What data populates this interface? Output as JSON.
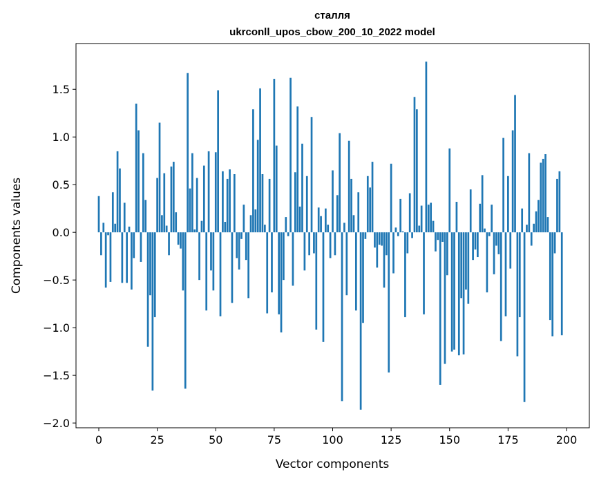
{
  "chart_data": {
    "type": "bar",
    "title": "сталля",
    "subtitle": "ukrconll_upos_cbow_200_10_2022 model",
    "xlabel": "Vector components",
    "ylabel": "Components values",
    "xlim": [
      -9.75,
      209.75
    ],
    "ylim": [
      -2.05,
      1.98
    ],
    "xticks": [
      0,
      25,
      50,
      75,
      100,
      125,
      150,
      175,
      200
    ],
    "xtick_labels": [
      "0",
      "25",
      "50",
      "75",
      "100",
      "125",
      "150",
      "175",
      "200"
    ],
    "yticks": [
      -2.0,
      -1.5,
      -1.0,
      -0.5,
      0.0,
      0.5,
      1.0,
      1.5
    ],
    "ytick_labels": [
      "−2.0",
      "−1.5",
      "−1.0",
      "−0.5",
      "0.0",
      "0.5",
      "1.0",
      "1.5"
    ],
    "grid": false,
    "bar_color": "#1f77b4",
    "values": [
      0.38,
      -0.24,
      0.1,
      -0.58,
      -0.03,
      -0.52,
      0.42,
      0.09,
      0.85,
      0.67,
      -0.53,
      0.31,
      -0.53,
      0.06,
      -0.6,
      -0.27,
      1.35,
      1.07,
      -0.31,
      0.83,
      0.34,
      -1.2,
      -0.66,
      -1.66,
      -0.89,
      0.57,
      1.15,
      0.18,
      0.62,
      0.07,
      -0.24,
      0.69,
      0.74,
      0.21,
      -0.13,
      -0.17,
      -0.61,
      -1.64,
      1.67,
      0.46,
      0.83,
      0.03,
      0.57,
      -0.5,
      0.12,
      0.7,
      -0.82,
      0.85,
      -0.4,
      -0.61,
      0.84,
      1.49,
      -0.88,
      0.64,
      0.11,
      0.56,
      0.66,
      -0.74,
      0.61,
      -0.27,
      -0.39,
      -0.07,
      0.29,
      -0.29,
      -0.69,
      0.18,
      1.29,
      0.24,
      0.97,
      1.51,
      0.61,
      0.08,
      -0.85,
      0.56,
      -0.63,
      1.61,
      0.91,
      -0.86,
      -1.05,
      -0.5,
      0.16,
      -0.04,
      1.62,
      -0.56,
      0.63,
      1.32,
      0.27,
      0.93,
      -0.4,
      0.59,
      -0.24,
      1.21,
      -0.22,
      -1.02,
      0.26,
      0.17,
      -1.15,
      0.25,
      0.08,
      -0.27,
      0.65,
      -0.24,
      0.39,
      1.04,
      -1.77,
      0.1,
      -0.66,
      0.96,
      0.56,
      0.18,
      -0.82,
      0.42,
      -1.86,
      -0.95,
      -0.07,
      0.59,
      0.47,
      0.74,
      -0.16,
      -0.37,
      -0.13,
      -0.14,
      -0.58,
      -0.24,
      -1.47,
      0.72,
      -0.43,
      0.05,
      -0.04,
      0.35,
      0.01,
      -0.89,
      -0.22,
      0.41,
      -0.06,
      1.42,
      1.29,
      0.07,
      0.28,
      -0.86,
      1.79,
      0.29,
      0.31,
      0.12,
      -0.2,
      -0.08,
      -1.6,
      -0.1,
      -1.38,
      -0.45,
      0.88,
      -1.25,
      -1.23,
      0.32,
      -1.29,
      -0.69,
      -1.28,
      -0.6,
      -0.75,
      0.45,
      -0.29,
      -0.18,
      -0.26,
      0.3,
      0.6,
      0.04,
      -0.63,
      -0.04,
      0.29,
      -0.44,
      -0.14,
      -0.23,
      -1.14,
      0.99,
      -0.88,
      0.59,
      -0.38,
      1.07,
      1.44,
      -1.3,
      -0.89,
      0.25,
      -1.78,
      0.08,
      0.83,
      -0.14,
      0.09,
      0.22,
      0.34,
      0.73,
      0.77,
      0.82,
      0.16,
      -0.92,
      -1.09,
      -0.22,
      0.56,
      0.64,
      -1.08
    ]
  }
}
